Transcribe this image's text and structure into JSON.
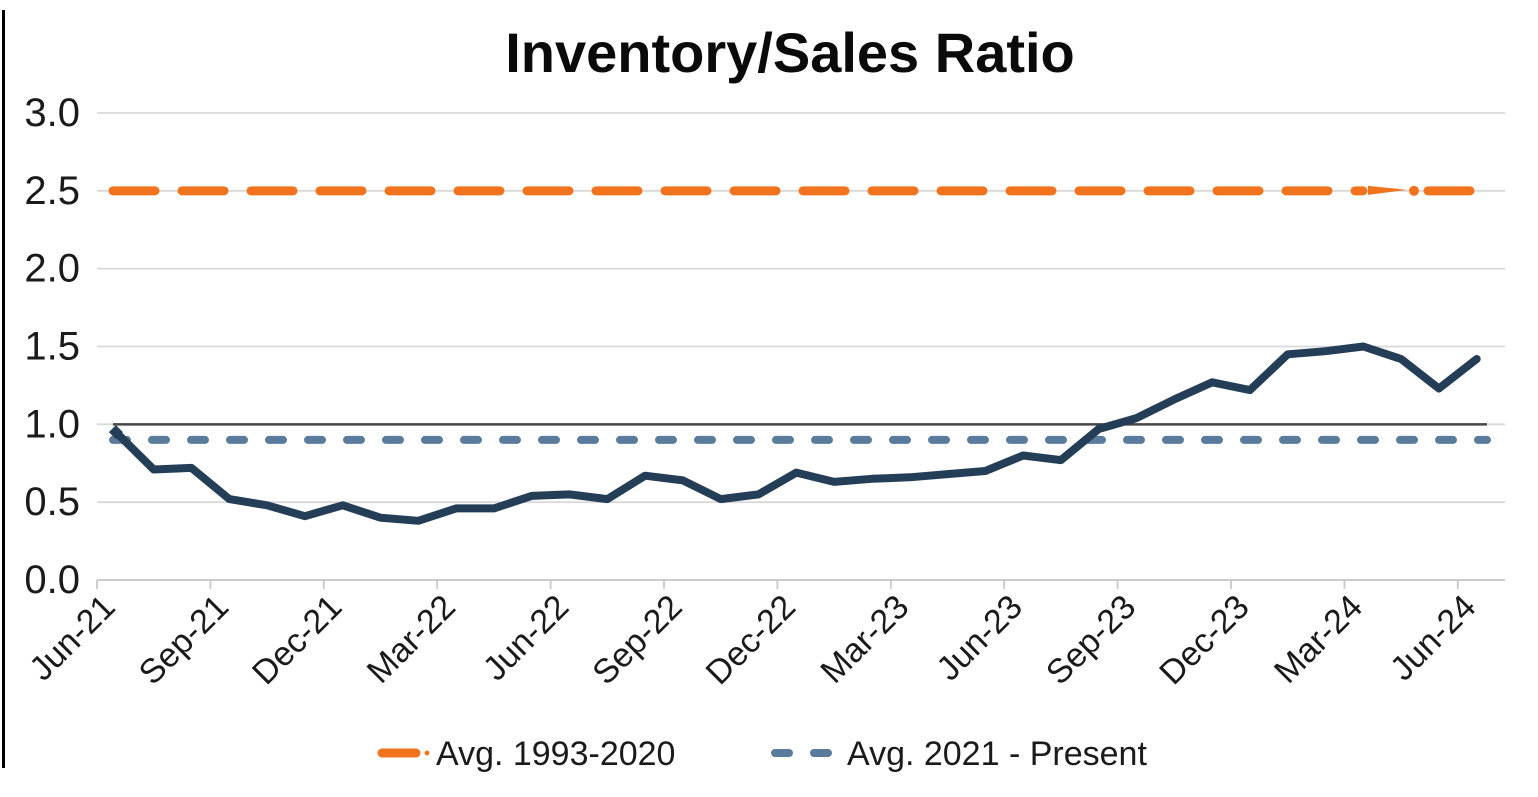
{
  "title": "Inventory/Sales Ratio",
  "colors": {
    "series_line": "#253E57",
    "avg_1993_2020": "#F2731E",
    "avg_2021_present": "#5B7B9D",
    "gridline": "#D9D9D9",
    "axis_line": "#C9C9C9",
    "reference_line_1_0": "#474747",
    "text": "#1A1A1A",
    "frame_border": "#000000"
  },
  "legend": [
    {
      "label": "Avg. 1993-2020",
      "color": "#F2731E",
      "style": "long-dash-dot"
    },
    {
      "label": "Avg. 2021 - Present",
      "color": "#5B7B9D",
      "style": "dash"
    }
  ],
  "chart_data": {
    "type": "line",
    "title": "Inventory/Sales Ratio",
    "xlabel": "",
    "ylabel": "",
    "ylim": [
      0,
      3
    ],
    "y_tick_step": 0.5,
    "y_tick_labels": [
      "0.0",
      "0.5",
      "1.0",
      "1.5",
      "2.0",
      "2.5",
      "3.0"
    ],
    "grid": true,
    "legend_position": "bottom",
    "reference_line": 1.0,
    "x": [
      "Jun-21",
      "Jul-21",
      "Aug-21",
      "Sep-21",
      "Oct-21",
      "Nov-21",
      "Dec-21",
      "Jan-22",
      "Feb-22",
      "Mar-22",
      "Apr-22",
      "May-22",
      "Jun-22",
      "Jul-22",
      "Aug-22",
      "Sep-22",
      "Oct-22",
      "Nov-22",
      "Dec-22",
      "Jan-23",
      "Feb-23",
      "Mar-23",
      "Apr-23",
      "May-23",
      "Jun-23",
      "Jul-23",
      "Aug-23",
      "Sep-23",
      "Oct-23",
      "Nov-23",
      "Dec-23",
      "Jan-24",
      "Feb-24",
      "Mar-24",
      "Apr-24",
      "May-24",
      "Jun-24"
    ],
    "x_tick_labels": [
      "Jun-21",
      "Sep-21",
      "Dec-21",
      "Mar-22",
      "Jun-22",
      "Sep-22",
      "Dec-22",
      "Mar-23",
      "Jun-23",
      "Sep-23",
      "Dec-23",
      "Mar-24",
      "Jun-24"
    ],
    "series": [
      {
        "name": "Inventory/Sales Ratio",
        "style": "solid",
        "values": [
          0.95,
          0.71,
          0.72,
          0.52,
          0.48,
          0.41,
          0.48,
          0.4,
          0.38,
          0.46,
          0.46,
          0.54,
          0.55,
          0.52,
          0.67,
          0.64,
          0.52,
          0.55,
          0.69,
          0.63,
          0.65,
          0.66,
          0.68,
          0.7,
          0.8,
          0.77,
          0.97,
          1.04,
          1.16,
          1.27,
          1.22,
          1.45,
          1.47,
          1.5,
          1.42,
          1.23,
          1.42
        ]
      },
      {
        "name": "Avg. 1993-2020",
        "style": "long-dash",
        "constant": 2.5
      },
      {
        "name": "Avg. 2021 - Present",
        "style": "dash",
        "constant": 0.9
      }
    ]
  }
}
